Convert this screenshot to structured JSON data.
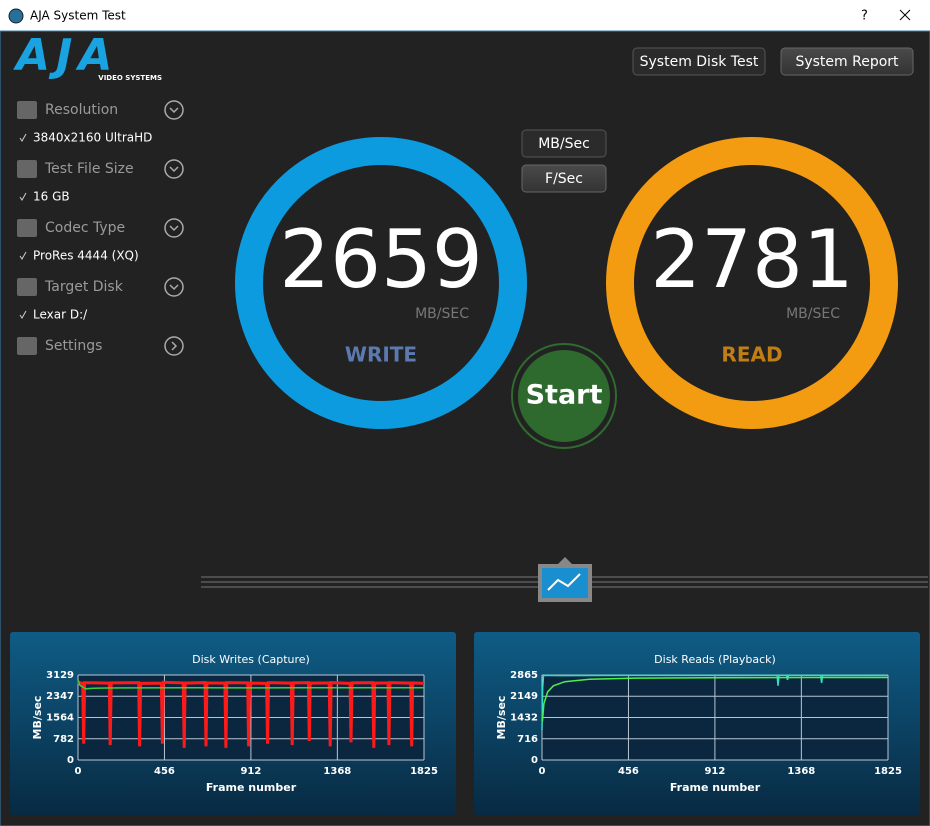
{
  "window": {
    "title": "AJA System Test",
    "help": "?"
  },
  "logo": {
    "brand": "AJA",
    "sub": "VIDEO SYSTEMS"
  },
  "buttons": [
    "System Disk Test",
    "System Report"
  ],
  "settings": [
    {
      "label": "Resolution",
      "value": "3840x2160 UltraHD"
    },
    {
      "label": "Test File Size",
      "value": "16 GB"
    },
    {
      "label": "Codec Type",
      "value": "ProRes 4444 (XQ)"
    },
    {
      "label": "Target Disk",
      "value": "Lexar D:/"
    },
    {
      "label": "Settings"
    }
  ],
  "units": [
    "MB/Sec",
    "F/Sec"
  ],
  "write": {
    "value": 2659,
    "unit": "MB/SEC",
    "label": "WRITE",
    "color": "#0d9be0"
  },
  "read": {
    "value": 2781,
    "unit": "MB/SEC",
    "label": "READ",
    "color": "#f39c12"
  },
  "start": "Start",
  "chart_data": [
    {
      "type": "line",
      "title": "Disk Writes (Capture)",
      "x_label": "Frame number",
      "y_label": "MB/sec",
      "xlim": [
        0,
        1825
      ],
      "xticks": [
        0,
        456,
        912,
        1368,
        1825
      ],
      "ylim": [
        0,
        3129
      ],
      "yticks": [
        0,
        782,
        1564,
        2347,
        3129
      ],
      "series": [
        {
          "color": "#ff1a1a",
          "x": [
            0,
            5,
            25,
            30,
            35,
            165,
            170,
            175,
            320,
            325,
            330,
            440,
            445,
            450,
            555,
            560,
            565,
            670,
            675,
            680,
            775,
            780,
            785,
            895,
            900,
            905,
            995,
            1000,
            1005,
            1125,
            1130,
            1135,
            1215,
            1220,
            1225,
            1325,
            1330,
            1335,
            1435,
            1440,
            1445,
            1555,
            1560,
            1565,
            1635,
            1640,
            1645,
            1755,
            1760,
            1765,
            1825
          ],
          "values": [
            2900,
            2850,
            2820,
            600,
            2850,
            2830,
            550,
            2840,
            2850,
            500,
            2820,
            2830,
            600,
            2860,
            2840,
            450,
            2830,
            2850,
            500,
            2840,
            2830,
            450,
            2850,
            2840,
            500,
            2830,
            2820,
            600,
            2850,
            2830,
            550,
            2840,
            2850,
            700,
            2830,
            2840,
            500,
            2850,
            2820,
            650,
            2840,
            2850,
            450,
            2830,
            2840,
            550,
            2850,
            2830,
            500,
            2840,
            2820
          ]
        },
        {
          "color": "#3ccf3c",
          "x": [
            0,
            10,
            40,
            80,
            150,
            300,
            600,
            900,
            1200,
            1500,
            1825
          ],
          "values": [
            2950,
            2750,
            2620,
            2640,
            2650,
            2655,
            2660,
            2655,
            2660,
            2658,
            2659
          ]
        }
      ]
    },
    {
      "type": "line",
      "title": "Disk Reads (Playback)",
      "x_label": "Frame number",
      "y_label": "MB/sec",
      "xlim": [
        0,
        1825
      ],
      "xticks": [
        0,
        456,
        912,
        1368,
        1825
      ],
      "ylim": [
        0,
        2865
      ],
      "yticks": [
        0,
        716,
        1432,
        2149,
        2865
      ],
      "series": [
        {
          "color": "#35dcc8",
          "x": [
            0,
            3,
            8,
            15,
            100,
            500,
            1000,
            1240,
            1245,
            1250,
            1290,
            1295,
            1300,
            1470,
            1475,
            1480,
            1825
          ],
          "values": [
            1000,
            2400,
            2840,
            2850,
            2845,
            2850,
            2848,
            2850,
            2500,
            2850,
            2850,
            2700,
            2850,
            2850,
            2600,
            2850,
            2848
          ]
        },
        {
          "color": "#4cf04c",
          "x": [
            2,
            10,
            30,
            60,
            120,
            250,
            500,
            900,
            1400,
            1825
          ],
          "values": [
            1300,
            1900,
            2300,
            2500,
            2640,
            2720,
            2760,
            2775,
            2780,
            2781
          ]
        }
      ]
    }
  ]
}
